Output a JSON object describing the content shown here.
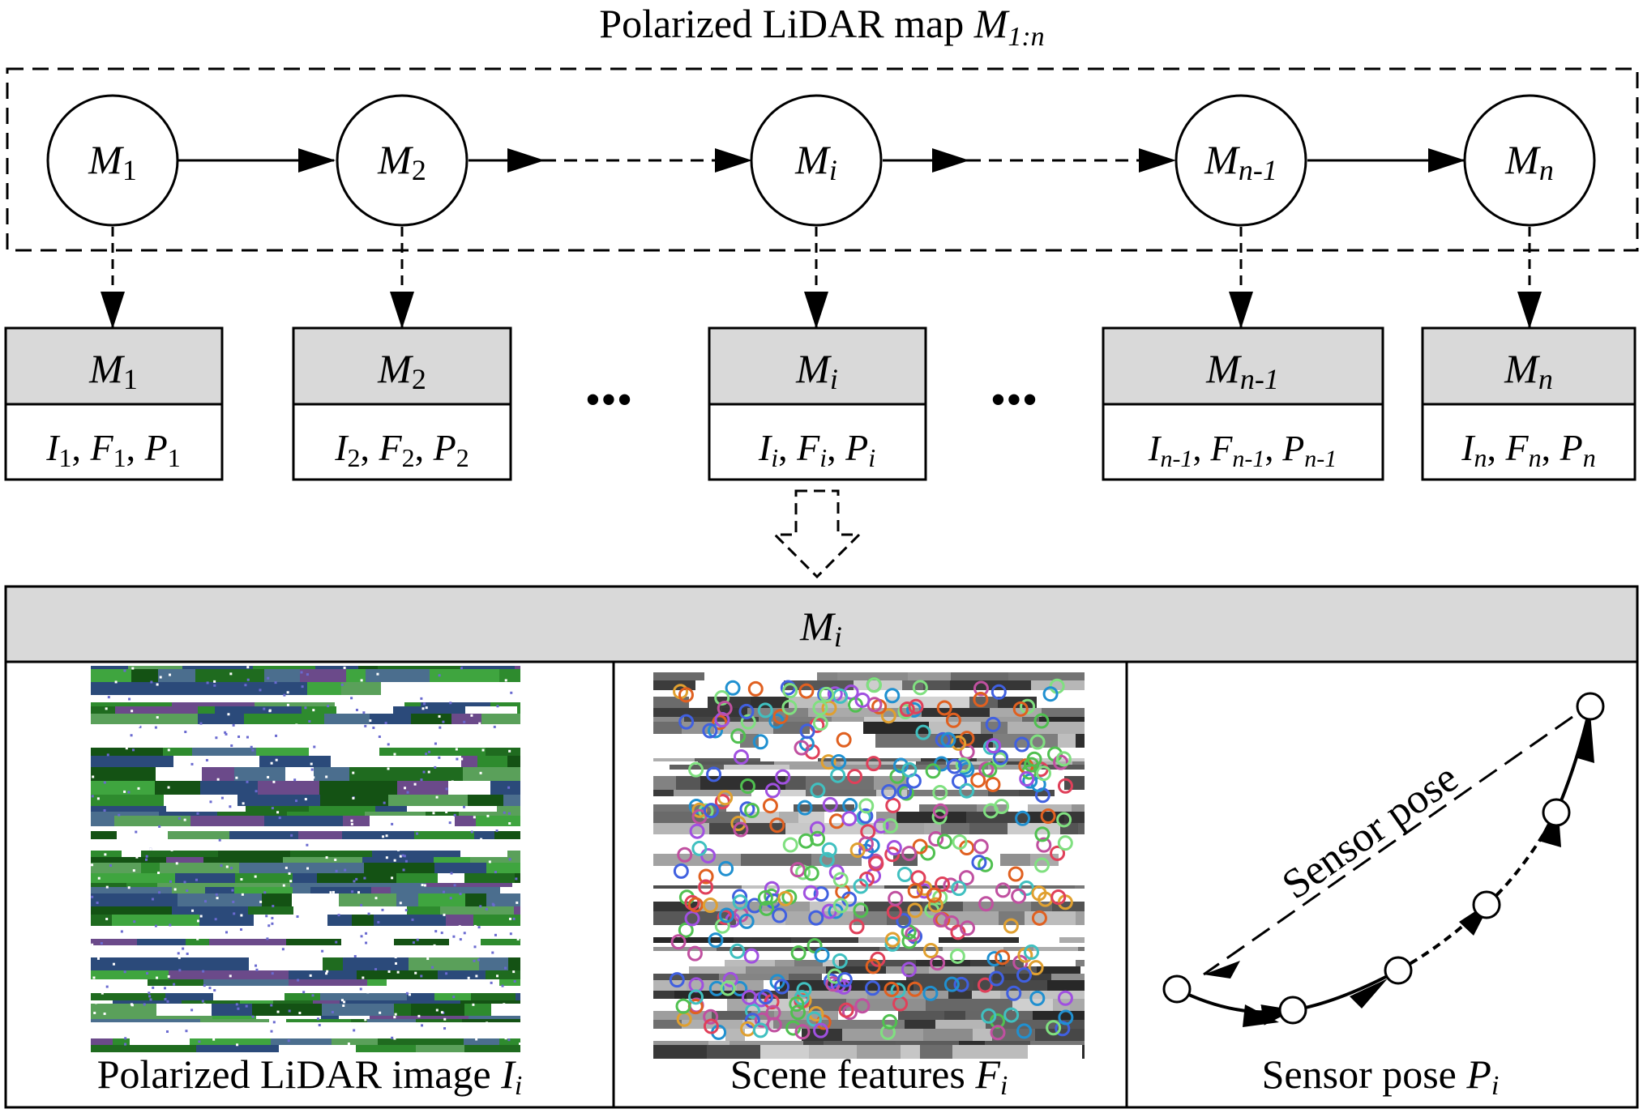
{
  "title": {
    "text": "Polarized LiDAR map ",
    "symbol": "M",
    "sub": "1:n"
  },
  "chain": [
    {
      "base": "M",
      "sub": "1"
    },
    {
      "base": "M",
      "sub": "2"
    },
    {
      "base": "M",
      "sub": "i"
    },
    {
      "base": "M",
      "sub": "n-1"
    },
    {
      "base": "M",
      "sub": "n"
    }
  ],
  "ellipsis": "•••",
  "records": [
    {
      "head": {
        "base": "M",
        "sub": "1"
      },
      "items": [
        {
          "base": "I",
          "sub": "1"
        },
        {
          "base": "F",
          "sub": "1"
        },
        {
          "base": "P",
          "sub": "1"
        }
      ]
    },
    {
      "head": {
        "base": "M",
        "sub": "2"
      },
      "items": [
        {
          "base": "I",
          "sub": "2"
        },
        {
          "base": "F",
          "sub": "2"
        },
        {
          "base": "P",
          "sub": "2"
        }
      ]
    },
    {
      "head": {
        "base": "M",
        "sub": "i"
      },
      "items": [
        {
          "base": "I",
          "sub": "i"
        },
        {
          "base": "F",
          "sub": "i"
        },
        {
          "base": "P",
          "sub": "i"
        }
      ]
    },
    {
      "head": {
        "base": "M",
        "sub": "n-1"
      },
      "items": [
        {
          "base": "I",
          "sub": "n-1"
        },
        {
          "base": "F",
          "sub": "n-1"
        },
        {
          "base": "P",
          "sub": "n-1"
        }
      ]
    },
    {
      "head": {
        "base": "M",
        "sub": "n"
      },
      "items": [
        {
          "base": "I",
          "sub": "n"
        },
        {
          "base": "F",
          "sub": "n"
        },
        {
          "base": "P",
          "sub": "n"
        }
      ]
    }
  ],
  "detail": {
    "head": {
      "base": "M",
      "sub": "i"
    },
    "panels": [
      {
        "caption": "Polarized LiDAR image ",
        "symbol": {
          "base": "I",
          "sub": "i"
        },
        "icon": "polarized-lidar-image"
      },
      {
        "caption": "Scene features ",
        "symbol": {
          "base": "F",
          "sub": "i"
        },
        "icon": "scene-features-image"
      },
      {
        "caption": "Sensor pose ",
        "symbol": {
          "base": "P",
          "sub": "i"
        },
        "icon": "pose-trajectory"
      }
    ],
    "pose_label": "Sensor pose"
  },
  "colors": {
    "line": "#000000",
    "header_fill": "#d9d9d9",
    "background": "#ffffff"
  }
}
